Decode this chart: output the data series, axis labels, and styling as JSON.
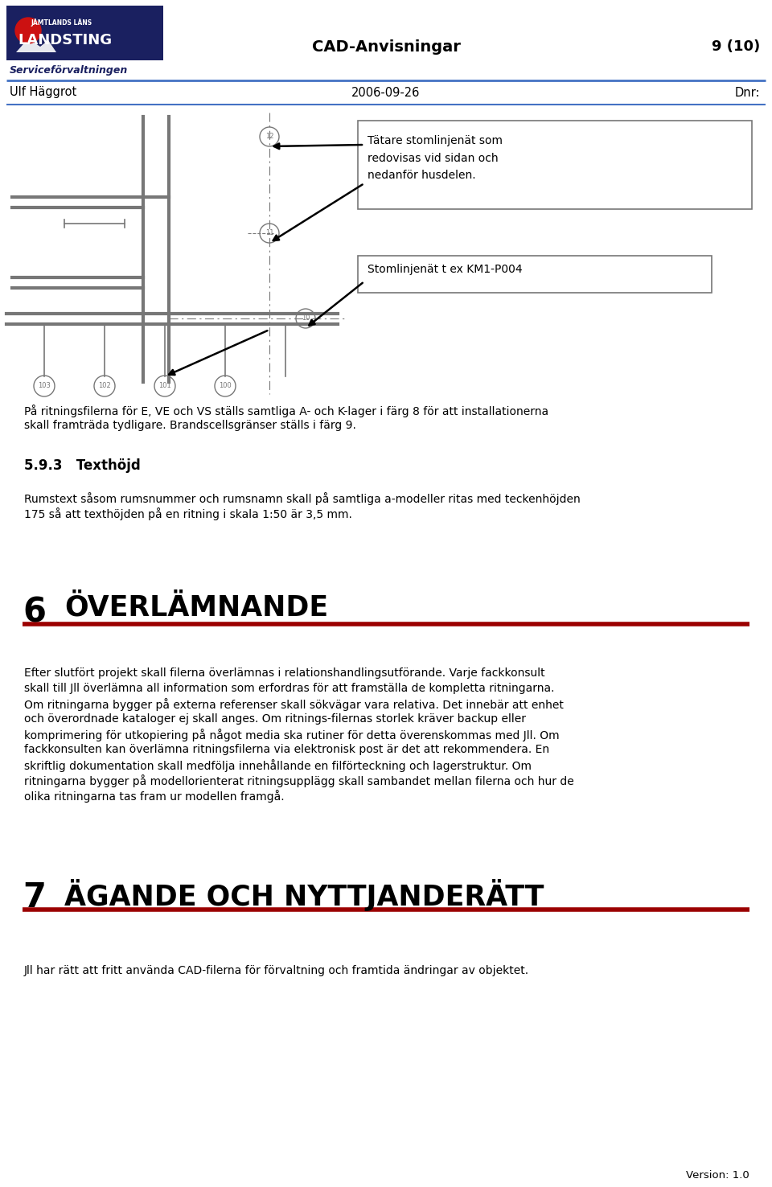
{
  "page_width": 9.6,
  "page_height": 14.76,
  "bg_color": "#ffffff",
  "header_line_color": "#4472c4",
  "red_line_color": "#9b0000",
  "logo_top_text": "JÄMTLANDS LÄNS",
  "logo_main_text": "LANDSTING",
  "logo_sub": "Serviceförvaltningen",
  "header_center": "CAD-Anvisningar",
  "header_right": "9 (10)",
  "subheader_left": "Ulf Häggrot",
  "subheader_center": "2006-09-26",
  "subheader_right": "Dnr:",
  "prev_text_line1": "På ritningsfilerna för E, VE och VS ställs samtliga A- och K-lager i färg 8 för att installationerna",
  "prev_text_line2": "skall framträda tydligare. Brandscellsgränser ställs i färg 9.",
  "section593_heading": "5.9.3   Texthöjd",
  "section593_body1": "Rumstext såsom rumsnummer och rumsnamn skall på samtliga a-modeller ritas med teckenhöjden",
  "section593_body2": "175 så att texthöjden på en ritning i skala 1:50 är 3,5 mm.",
  "section6_number": "6",
  "section6_title": "ÖVERLÄMNANDE",
  "section6_body": [
    "Efter slutfört projekt skall filerna överlämnas i relationshandlingsutförande. Varje fackkonsult",
    "skall till Jll överlämna all information som erfordras för att framställa de kompletta ritningarna.",
    "Om ritningarna bygger på externa referenser skall sökvägar vara relativa. Det innebär att enhet",
    "och överordnade kataloger ej skall anges. Om ritnings-filernas storlek kräver backup eller",
    "komprimering för utkopiering på något media ska rutiner för detta överenskommas med Jll. Om",
    "fackkonsulten kan överlämna ritningsfilerna via elektronisk post är det att rekommendera. En",
    "skriftlig dokumentation skall medfölja innehållande en filförteckning och lagerstruktur. Om",
    "ritningarna bygger på modellorienterat ritningsupplägg skall sambandet mellan filerna och hur de",
    "olika ritningarna tas fram ur modellen framgå."
  ],
  "section7_number": "7",
  "section7_title": "ÄGANDE OCH NYTTJANDERÄTT",
  "section7_body": "Jll har rätt att fritt använda CAD-filerna för förvaltning och framtida ändringar av objektet.",
  "footer_right": "Version: 1.0",
  "box1_text": "Tätare stomlinjenät som\nredovisas vid sidan och\nnedanför husdelen.",
  "box2_text": "Stomlinjenät t ex KM1-P004",
  "draw_color": "#777777",
  "text_color": "#000000",
  "dark_navy": "#1a2060",
  "logo_red": "#cc1111"
}
